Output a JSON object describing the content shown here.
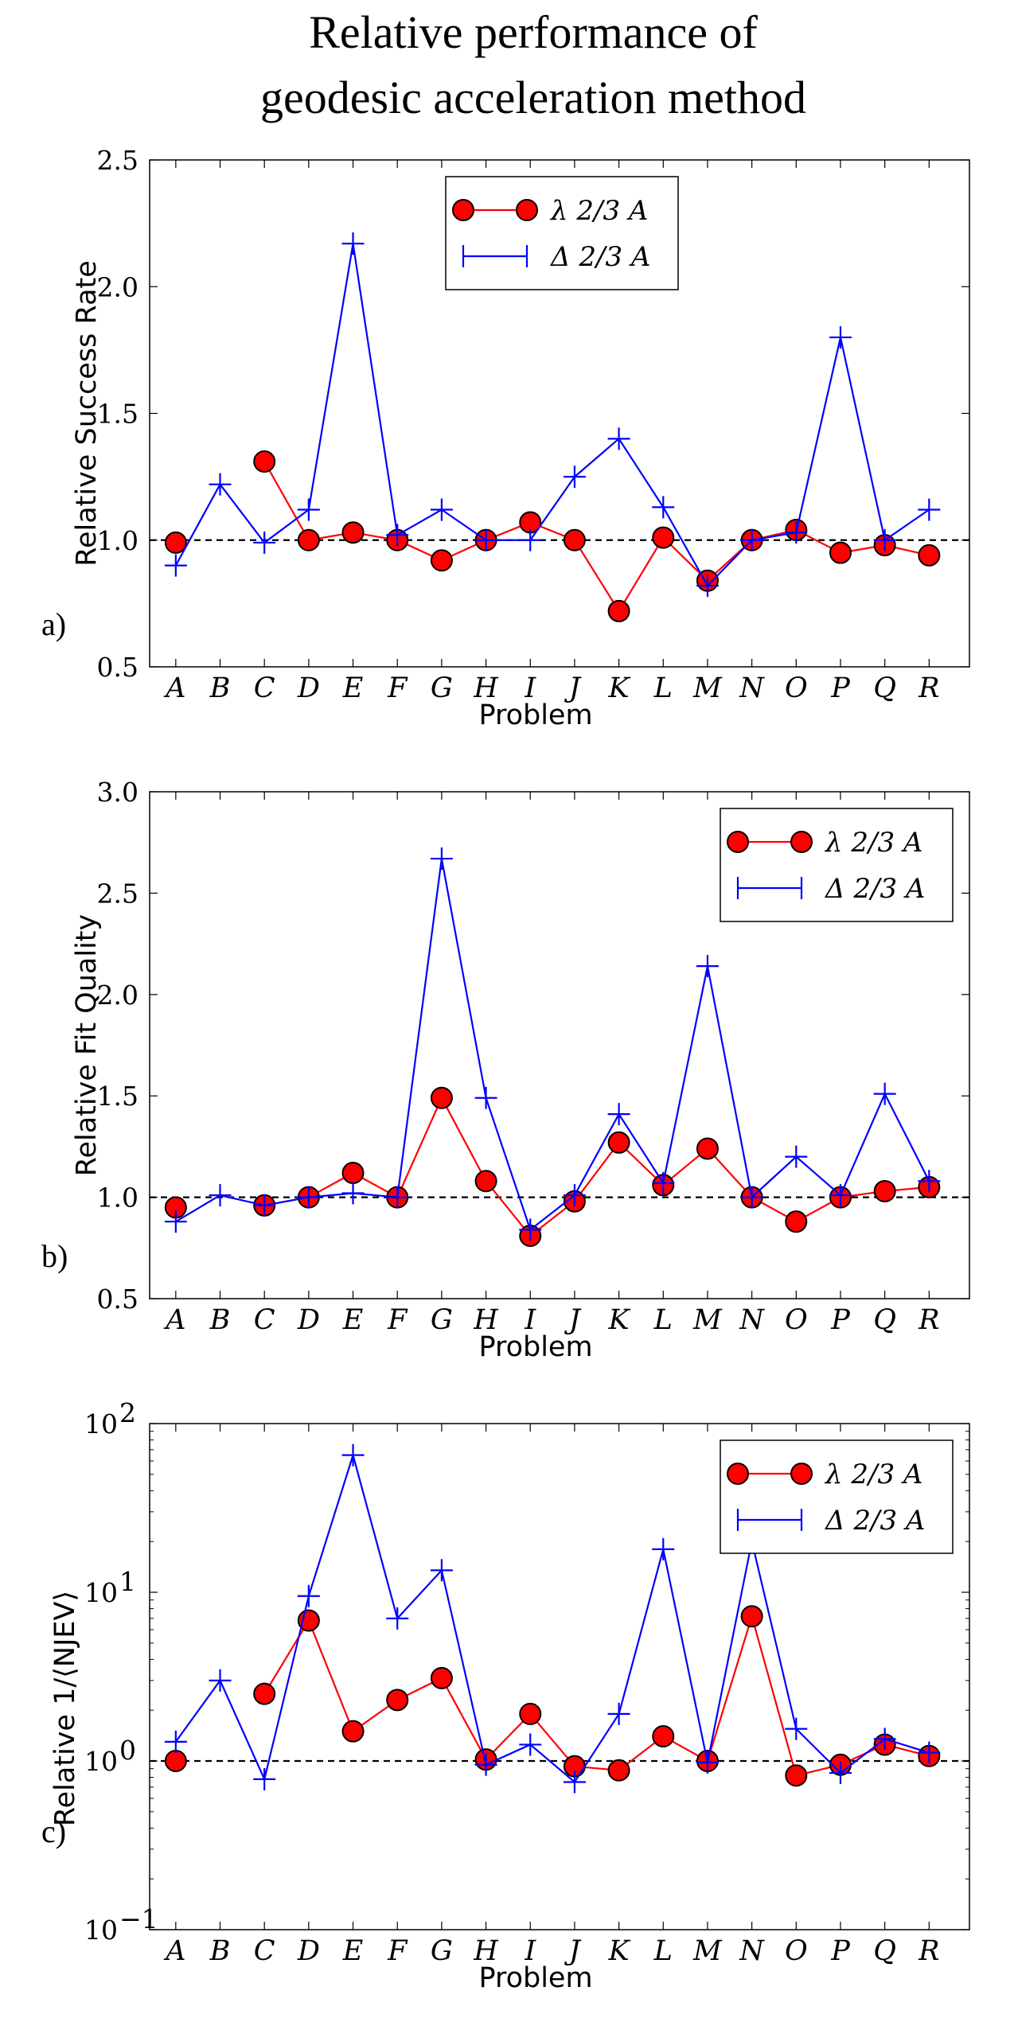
{
  "figure": {
    "title_line1": "Relative performance of",
    "title_line2": "geodesic acceleration method"
  },
  "colors": {
    "lambda": "#ff0000",
    "delta": "#0000ff",
    "reference": "#000000"
  },
  "chart_data": [
    {
      "type": "line",
      "panel_label": "a)",
      "ylabel": "Relative Success Rate",
      "xlabel": "Problem",
      "scale": "linear",
      "ylim": [
        0.5,
        2.5
      ],
      "yticks": [
        "0.5",
        "1.0",
        "1.5",
        "2.0",
        "2.5"
      ],
      "ytick_values": [
        0.5,
        1.0,
        1.5,
        2.0,
        2.5
      ],
      "legend_position": "top-center",
      "reference_line": 1.0,
      "categories": [
        "A",
        "B",
        "C",
        "D",
        "E",
        "F",
        "G",
        "H",
        "I",
        "J",
        "K",
        "L",
        "M",
        "N",
        "O",
        "P",
        "Q",
        "R"
      ],
      "series": [
        {
          "name": "λ 2/3 A",
          "marker": "circle",
          "values": [
            0.99,
            null,
            1.31,
            1.0,
            1.03,
            1.0,
            0.92,
            1.0,
            1.07,
            1.0,
            0.72,
            1.01,
            0.84,
            1.0,
            1.04,
            0.95,
            0.98,
            0.94
          ]
        },
        {
          "name": "Δ 2/3 A",
          "marker": "plus",
          "values": [
            0.9,
            1.22,
            0.99,
            1.12,
            2.17,
            1.02,
            1.12,
            1.0,
            1.0,
            1.25,
            1.4,
            1.13,
            0.82,
            1.0,
            1.03,
            1.8,
            1.0,
            1.12
          ]
        }
      ]
    },
    {
      "type": "line",
      "panel_label": "b)",
      "ylabel": "Relative Fit Quality",
      "xlabel": "Problem",
      "scale": "linear",
      "ylim": [
        0.5,
        3.0
      ],
      "yticks": [
        "0.5",
        "1.0",
        "1.5",
        "2.0",
        "2.5",
        "3.0"
      ],
      "ytick_values": [
        0.5,
        1.0,
        1.5,
        2.0,
        2.5,
        3.0
      ],
      "legend_position": "top-right",
      "reference_line": 1.0,
      "categories": [
        "A",
        "B",
        "C",
        "D",
        "E",
        "F",
        "G",
        "H",
        "I",
        "J",
        "K",
        "L",
        "M",
        "N",
        "O",
        "P",
        "Q",
        "R"
      ],
      "series": [
        {
          "name": "λ 2/3 A",
          "marker": "circle",
          "values": [
            0.95,
            null,
            0.96,
            1.0,
            1.12,
            1.0,
            1.49,
            1.08,
            0.81,
            0.98,
            1.27,
            1.06,
            1.24,
            1.0,
            0.88,
            1.0,
            1.03,
            1.05
          ]
        },
        {
          "name": "Δ 2/3 A",
          "marker": "plus",
          "values": [
            0.88,
            1.01,
            0.96,
            1.0,
            1.02,
            1.0,
            2.67,
            1.49,
            0.84,
            1.01,
            1.41,
            1.07,
            2.14,
            1.0,
            1.2,
            1.01,
            1.51,
            1.08
          ]
        }
      ]
    },
    {
      "type": "line",
      "panel_label": "c)",
      "ylabel": "Relative 1/⟨NJEV⟩",
      "xlabel": "Problem",
      "scale": "log",
      "ylim": [
        0.1,
        100
      ],
      "yticks": [
        "10",
        "10",
        "10",
        "10"
      ],
      "ytick_exponents": [
        "−1",
        "0",
        "1",
        "2"
      ],
      "ytick_values": [
        0.1,
        1,
        10,
        100
      ],
      "legend_position": "top-right",
      "reference_line": 1.0,
      "categories": [
        "A",
        "B",
        "C",
        "D",
        "E",
        "F",
        "G",
        "H",
        "I",
        "J",
        "K",
        "L",
        "M",
        "N",
        "O",
        "P",
        "Q",
        "R"
      ],
      "series": [
        {
          "name": "λ 2/3 A",
          "marker": "circle",
          "values": [
            1.0,
            null,
            2.5,
            6.8,
            1.5,
            2.3,
            3.1,
            1.02,
            1.9,
            0.93,
            0.88,
            1.4,
            1.0,
            7.2,
            0.82,
            0.95,
            1.25,
            1.07
          ]
        },
        {
          "name": "Δ 2/3 A",
          "marker": "plus",
          "values": [
            1.3,
            3.0,
            0.78,
            9.5,
            65,
            7.0,
            13.5,
            0.95,
            1.25,
            0.75,
            1.9,
            18.0,
            0.98,
            20.0,
            1.55,
            0.85,
            1.35,
            1.12
          ]
        }
      ]
    }
  ]
}
